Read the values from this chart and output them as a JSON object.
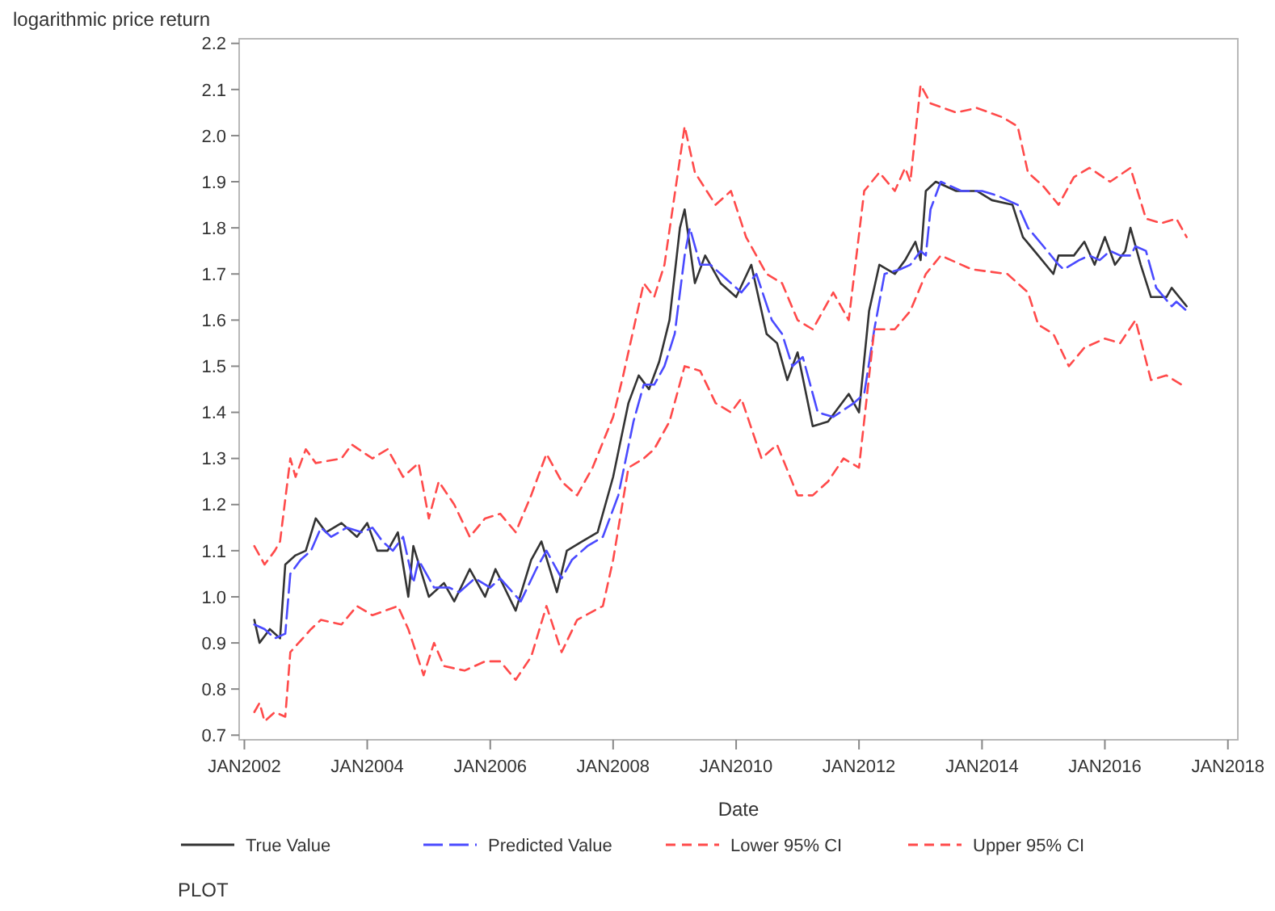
{
  "chart_data": {
    "type": "line",
    "xlabel": "Date",
    "ylabel": "logarithmic price return",
    "annotations": [
      "PLOT"
    ],
    "xlim": [
      "2001-12",
      "2018-03"
    ],
    "ylim": [
      0.69,
      2.21
    ],
    "xticks": [
      {
        "value": "2002-01",
        "label": "JAN2002"
      },
      {
        "value": "2004-01",
        "label": "JAN2004"
      },
      {
        "value": "2006-01",
        "label": "JAN2006"
      },
      {
        "value": "2008-01",
        "label": "JAN2008"
      },
      {
        "value": "2010-01",
        "label": "JAN2010"
      },
      {
        "value": "2012-01",
        "label": "JAN2012"
      },
      {
        "value": "2014-01",
        "label": "JAN2014"
      },
      {
        "value": "2016-01",
        "label": "JAN2016"
      },
      {
        "value": "2018-01",
        "label": "JAN2018"
      }
    ],
    "yticks": [
      {
        "value": 0.7,
        "label": "0.7"
      },
      {
        "value": 0.8,
        "label": "0.8"
      },
      {
        "value": 0.9,
        "label": "0.9"
      },
      {
        "value": 1.0,
        "label": "1.0"
      },
      {
        "value": 1.1,
        "label": "1.1"
      },
      {
        "value": 1.2,
        "label": "1.2"
      },
      {
        "value": 1.3,
        "label": "1.3"
      },
      {
        "value": 1.4,
        "label": "1.4"
      },
      {
        "value": 1.5,
        "label": "1.5"
      },
      {
        "value": 1.6,
        "label": "1.6"
      },
      {
        "value": 1.7,
        "label": "1.7"
      },
      {
        "value": 1.8,
        "label": "1.8"
      },
      {
        "value": 1.9,
        "label": "1.9"
      },
      {
        "value": 2.0,
        "label": "2.0"
      },
      {
        "value": 2.1,
        "label": "2.1"
      },
      {
        "value": 2.2,
        "label": "2.2"
      }
    ],
    "grid": false,
    "legend": "bottom",
    "marker": "none",
    "series": [
      {
        "name": "True Value",
        "color": "#333333",
        "line_style": "solid",
        "x": [
          "2002-03",
          "2002-04",
          "2002-06",
          "2002-08",
          "2002-09",
          "2002-11",
          "2003-01",
          "2003-03",
          "2003-05",
          "2003-08",
          "2003-11",
          "2004-01",
          "2004-03",
          "2004-05",
          "2004-07",
          "2004-09",
          "2004-10",
          "2005-01",
          "2005-04",
          "2005-06",
          "2005-09",
          "2005-12",
          "2006-02",
          "2006-06",
          "2006-09",
          "2006-11",
          "2007-02",
          "2007-04",
          "2007-07",
          "2007-10",
          "2008-01",
          "2008-04",
          "2008-06",
          "2008-08",
          "2008-10",
          "2008-12",
          "2009-02",
          "2009-03",
          "2009-05",
          "2009-07",
          "2009-10",
          "2010-01",
          "2010-04",
          "2010-07",
          "2010-09",
          "2010-11",
          "2011-01",
          "2011-04",
          "2011-07",
          "2011-11",
          "2012-01",
          "2012-03",
          "2012-05",
          "2012-08",
          "2012-10",
          "2012-12",
          "2013-01",
          "2013-02",
          "2013-04",
          "2013-08",
          "2013-12",
          "2014-03",
          "2014-07",
          "2014-09",
          "2014-12",
          "2015-03",
          "2015-04",
          "2015-07",
          "2015-09",
          "2015-11",
          "2016-01",
          "2016-03",
          "2016-05",
          "2016-06",
          "2016-08",
          "2016-10",
          "2017-01",
          "2017-02",
          "2017-05"
        ],
        "values": [
          0.95,
          0.9,
          0.93,
          0.91,
          1.07,
          1.09,
          1.1,
          1.17,
          1.14,
          1.16,
          1.13,
          1.16,
          1.1,
          1.1,
          1.14,
          1.0,
          1.11,
          1.0,
          1.03,
          0.99,
          1.06,
          1.0,
          1.06,
          0.97,
          1.08,
          1.12,
          1.01,
          1.1,
          1.12,
          1.14,
          1.26,
          1.42,
          1.48,
          1.45,
          1.51,
          1.6,
          1.8,
          1.84,
          1.68,
          1.74,
          1.68,
          1.65,
          1.72,
          1.57,
          1.55,
          1.47,
          1.53,
          1.37,
          1.38,
          1.44,
          1.4,
          1.62,
          1.72,
          1.7,
          1.73,
          1.77,
          1.73,
          1.88,
          1.9,
          1.88,
          1.88,
          1.86,
          1.85,
          1.78,
          1.74,
          1.7,
          1.74,
          1.74,
          1.77,
          1.72,
          1.78,
          1.72,
          1.75,
          1.8,
          1.72,
          1.65,
          1.65,
          1.67,
          1.63
        ]
      },
      {
        "name": "Predicted Value",
        "color": "#4a4aff",
        "line_style": "longdash",
        "x": [
          "2002-03",
          "2002-05",
          "2002-07",
          "2002-09",
          "2002-10",
          "2002-12",
          "2003-02",
          "2003-04",
          "2003-06",
          "2003-09",
          "2003-12",
          "2004-02",
          "2004-04",
          "2004-06",
          "2004-08",
          "2004-10",
          "2004-11",
          "2005-02",
          "2005-05",
          "2005-07",
          "2005-10",
          "2006-01",
          "2006-03",
          "2006-07",
          "2006-10",
          "2006-12",
          "2007-03",
          "2007-05",
          "2007-08",
          "2007-11",
          "2008-02",
          "2008-05",
          "2008-07",
          "2008-09",
          "2008-11",
          "2009-01",
          "2009-03",
          "2009-04",
          "2009-06",
          "2009-08",
          "2009-11",
          "2010-02",
          "2010-05",
          "2010-08",
          "2010-10",
          "2010-12",
          "2011-02",
          "2011-05",
          "2011-08",
          "2011-12",
          "2012-02",
          "2012-04",
          "2012-06",
          "2012-09",
          "2012-11",
          "2013-01",
          "2013-02",
          "2013-03",
          "2013-05",
          "2013-09",
          "2014-01",
          "2014-04",
          "2014-08",
          "2014-10",
          "2015-01",
          "2015-04",
          "2015-05",
          "2015-08",
          "2015-10",
          "2015-12",
          "2016-02",
          "2016-04",
          "2016-06",
          "2016-07",
          "2016-09",
          "2016-11",
          "2017-02",
          "2017-03",
          "2017-05"
        ],
        "values": [
          0.94,
          0.93,
          0.91,
          0.92,
          1.05,
          1.08,
          1.1,
          1.15,
          1.13,
          1.15,
          1.14,
          1.15,
          1.12,
          1.1,
          1.13,
          1.03,
          1.08,
          1.02,
          1.02,
          1.01,
          1.04,
          1.02,
          1.04,
          0.99,
          1.06,
          1.1,
          1.04,
          1.08,
          1.11,
          1.13,
          1.22,
          1.38,
          1.46,
          1.46,
          1.5,
          1.57,
          1.74,
          1.8,
          1.72,
          1.72,
          1.69,
          1.66,
          1.7,
          1.6,
          1.57,
          1.5,
          1.52,
          1.4,
          1.39,
          1.42,
          1.44,
          1.58,
          1.7,
          1.71,
          1.72,
          1.75,
          1.74,
          1.84,
          1.9,
          1.88,
          1.88,
          1.87,
          1.85,
          1.8,
          1.76,
          1.72,
          1.71,
          1.73,
          1.74,
          1.73,
          1.75,
          1.74,
          1.74,
          1.76,
          1.75,
          1.67,
          1.63,
          1.64,
          1.62
        ]
      },
      {
        "name": "Lower 95% CI",
        "color": "#ff4a4a",
        "line_style": "dashed",
        "x": [
          "2002-03",
          "2002-04",
          "2002-05",
          "2002-07",
          "2002-09",
          "2002-10",
          "2003-02",
          "2003-04",
          "2003-08",
          "2003-11",
          "2004-02",
          "2004-07",
          "2004-09",
          "2004-12",
          "2005-02",
          "2005-04",
          "2005-08",
          "2005-12",
          "2006-03",
          "2006-06",
          "2006-09",
          "2006-12",
          "2007-03",
          "2007-06",
          "2007-11",
          "2008-01",
          "2008-04",
          "2008-07",
          "2008-09",
          "2008-12",
          "2009-03",
          "2009-06",
          "2009-09",
          "2009-12",
          "2010-02",
          "2010-06",
          "2010-09",
          "2011-01",
          "2011-04",
          "2011-07",
          "2011-10",
          "2012-01",
          "2012-04",
          "2012-08",
          "2012-11",
          "2013-02",
          "2013-05",
          "2013-11",
          "2014-06",
          "2014-10",
          "2014-12",
          "2015-03",
          "2015-06",
          "2015-09",
          "2016-01",
          "2016-04",
          "2016-07",
          "2016-10",
          "2017-01",
          "2017-04"
        ],
        "values": [
          0.75,
          0.77,
          0.73,
          0.75,
          0.74,
          0.88,
          0.93,
          0.95,
          0.94,
          0.98,
          0.96,
          0.98,
          0.93,
          0.83,
          0.9,
          0.85,
          0.84,
          0.86,
          0.86,
          0.82,
          0.87,
          0.98,
          0.88,
          0.95,
          0.98,
          1.08,
          1.28,
          1.3,
          1.32,
          1.38,
          1.5,
          1.49,
          1.42,
          1.4,
          1.43,
          1.3,
          1.33,
          1.22,
          1.22,
          1.25,
          1.3,
          1.28,
          1.58,
          1.58,
          1.62,
          1.7,
          1.74,
          1.71,
          1.7,
          1.66,
          1.59,
          1.57,
          1.5,
          1.54,
          1.56,
          1.55,
          1.6,
          1.47,
          1.48,
          1.46
        ]
      },
      {
        "name": "Upper 95% CI",
        "color": "#ff4a4a",
        "line_style": "dashed",
        "x": [
          "2002-03",
          "2002-05",
          "2002-07",
          "2002-08",
          "2002-10",
          "2002-11",
          "2003-01",
          "2003-03",
          "2003-08",
          "2003-10",
          "2004-02",
          "2004-05",
          "2004-08",
          "2004-11",
          "2005-01",
          "2005-03",
          "2005-06",
          "2005-09",
          "2005-12",
          "2006-03",
          "2006-06",
          "2006-09",
          "2006-12",
          "2007-03",
          "2007-06",
          "2007-09",
          "2008-01",
          "2008-03",
          "2008-05",
          "2008-07",
          "2008-09",
          "2008-11",
          "2009-03",
          "2009-05",
          "2009-09",
          "2009-12",
          "2010-03",
          "2010-07",
          "2010-10",
          "2011-01",
          "2011-04",
          "2011-08",
          "2011-11",
          "2012-02",
          "2012-05",
          "2012-08",
          "2012-10",
          "2012-11",
          "2013-01",
          "2013-03",
          "2013-08",
          "2013-12",
          "2014-05",
          "2014-08",
          "2014-10",
          "2015-01",
          "2015-04",
          "2015-07",
          "2015-10",
          "2016-02",
          "2016-06",
          "2016-09",
          "2016-12",
          "2017-03",
          "2017-05"
        ],
        "values": [
          1.11,
          1.07,
          1.1,
          1.12,
          1.3,
          1.26,
          1.32,
          1.29,
          1.3,
          1.33,
          1.3,
          1.32,
          1.26,
          1.29,
          1.17,
          1.25,
          1.2,
          1.13,
          1.17,
          1.18,
          1.14,
          1.22,
          1.31,
          1.25,
          1.22,
          1.28,
          1.39,
          1.48,
          1.58,
          1.68,
          1.65,
          1.72,
          2.02,
          1.92,
          1.85,
          1.88,
          1.78,
          1.7,
          1.68,
          1.6,
          1.58,
          1.66,
          1.6,
          1.88,
          1.92,
          1.88,
          1.93,
          1.9,
          2.11,
          2.07,
          2.05,
          2.06,
          2.04,
          2.02,
          1.92,
          1.89,
          1.85,
          1.91,
          1.93,
          1.9,
          1.93,
          1.82,
          1.81,
          1.82,
          1.78
        ]
      }
    ]
  }
}
